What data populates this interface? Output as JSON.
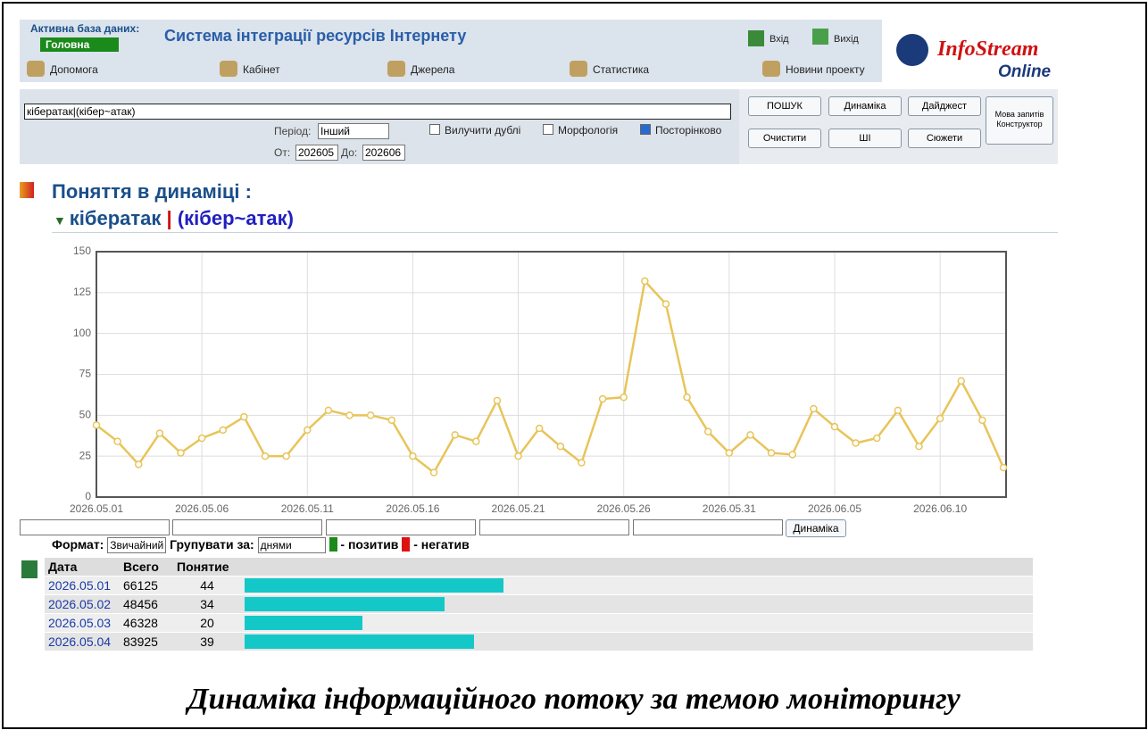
{
  "header": {
    "db_label": "Активна база даних:",
    "db_select": "Головна",
    "title": "Система інтеграції ресурсів Інтернету",
    "login": "Вхід",
    "logout": "Вихід",
    "logo_1": "InfoStream",
    "logo_2": "Online"
  },
  "menu": [
    "Допомога",
    "Кабінет",
    "Джерела",
    "Статистика",
    "Новини проекту"
  ],
  "search": {
    "query": "кібератак|(кібер~атак)",
    "period_label": "Період:",
    "period": "Інший",
    "exclude_dup": "Вилучити дублі",
    "morph": "Морфологія",
    "row_by_row": "Посторінково",
    "from_label": "От:",
    "from": "202605",
    "to_label": "До:",
    "to": "202606",
    "buttons": [
      "ПОШУК",
      "Динаміка",
      "Дайджест",
      "Очистити",
      "ШІ",
      "Сюжети"
    ],
    "lang": [
      "Мова запитів",
      "Конструктор"
    ]
  },
  "heading": {
    "title": "Поняття в динаміці :",
    "term1": "кібератак",
    "sep": "|",
    "term2": "(кібер~атак)"
  },
  "chart_data": {
    "type": "line",
    "color": "#e8c45a",
    "categories": [
      "2026.05.01",
      null,
      null,
      null,
      null,
      "2026.05.06",
      null,
      null,
      null,
      null,
      "2026.05.11",
      null,
      null,
      null,
      null,
      "2026.05.16",
      null,
      null,
      null,
      null,
      "2026.05.21",
      null,
      null,
      null,
      null,
      "2026.05.26",
      null,
      null,
      null,
      null,
      "2026.05.31",
      null,
      null,
      null,
      null,
      "2026.06.05",
      null,
      null,
      null,
      null,
      "2026.06.10",
      null,
      null,
      null
    ],
    "values": [
      44,
      34,
      20,
      39,
      27,
      36,
      41,
      49,
      25,
      25,
      41,
      53,
      50,
      50,
      47,
      25,
      15,
      38,
      34,
      59,
      25,
      42,
      31,
      21,
      60,
      61,
      132,
      118,
      61,
      40,
      27,
      38,
      27,
      26,
      54,
      43,
      33,
      36,
      53,
      31,
      48,
      71,
      47,
      18
    ],
    "ylim": [
      0,
      150
    ],
    "yticks": [
      0,
      25,
      50,
      75,
      100,
      125,
      150
    ],
    "grid": true
  },
  "controls": {
    "format_label": "Формат:",
    "format": "Звичайний",
    "group_label": "Групувати за:",
    "group": "днями",
    "positive": "- позитив",
    "negative": "- негатив",
    "button": "Динаміка"
  },
  "table": {
    "columns": [
      "Дата",
      "Всего",
      "Понятие"
    ],
    "rows": [
      [
        "2026.05.01",
        66125,
        44
      ],
      [
        "2026.05.02",
        48456,
        34
      ],
      [
        "2026.05.03",
        46328,
        20
      ],
      [
        "2026.05.04",
        83925,
        39
      ]
    ]
  },
  "caption": "Динаміка інформаційного потоку за темою моніторингу"
}
